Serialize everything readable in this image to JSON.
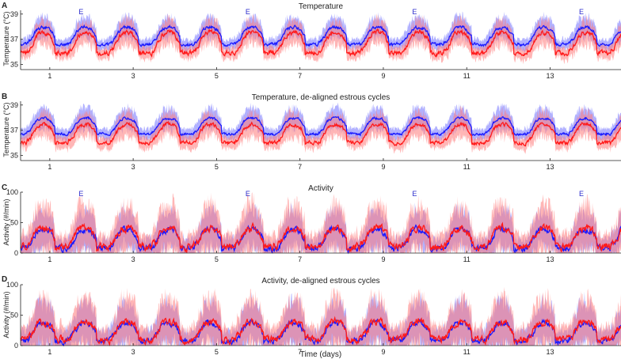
{
  "figure": {
    "xlabel": "Time (days)"
  },
  "colors": {
    "blue_line": "#1a1aff",
    "blue_band": "#7d7dff",
    "red_line": "#ff1a1a",
    "red_band": "#ff7a7a",
    "estrus_label": "#2a2acc",
    "axis": "#222222"
  },
  "chart_data": [
    {
      "panel": "A",
      "type": "line",
      "title": "Temperature",
      "ylabel": "Temperature (°C)",
      "xlabel": "",
      "xlim": [
        0.3,
        14.7
      ],
      "ylim": [
        34.6,
        39.3
      ],
      "yticks": [
        35,
        37,
        39
      ],
      "xticks": [
        1,
        3,
        5,
        7,
        9,
        11,
        13
      ],
      "estrus_marker": "E",
      "estrus_days": [
        1.75,
        5.75,
        9.75,
        13.75
      ],
      "series": [
        {
          "name": "blue",
          "period_days": 1,
          "night_start": 0.6,
          "night_end": 1.1,
          "night_mean": 38.0,
          "day_mean": 36.6,
          "spread": 0.7,
          "noise": 0.25
        },
        {
          "name": "red",
          "period_days": 1,
          "night_start": 0.6,
          "night_end": 1.1,
          "night_mean": 37.6,
          "day_mean": 35.9,
          "spread": 0.8,
          "noise": 0.35
        }
      ]
    },
    {
      "panel": "B",
      "type": "line",
      "title": "Temperature, de-aligned estrous cycles",
      "ylabel": "Temperature (°C)",
      "xlabel": "",
      "xlim": [
        0.3,
        14.7
      ],
      "ylim": [
        34.6,
        39.3
      ],
      "yticks": [
        35,
        37,
        39
      ],
      "xticks": [
        1,
        3,
        5,
        7,
        9,
        11,
        13
      ],
      "estrus_marker": "",
      "estrus_days": [],
      "series": [
        {
          "name": "blue",
          "period_days": 1,
          "night_start": 0.6,
          "night_end": 1.1,
          "night_mean": 38.0,
          "day_mean": 36.7,
          "spread": 0.7,
          "noise": 0.2
        },
        {
          "name": "red",
          "period_days": 1,
          "night_start": 0.6,
          "night_end": 1.1,
          "night_mean": 37.5,
          "day_mean": 36.0,
          "spread": 0.8,
          "noise": 0.3
        }
      ]
    },
    {
      "panel": "C",
      "type": "line",
      "title": "Activity",
      "ylabel": "Activity (#/min)",
      "xlabel": "",
      "xlim": [
        0.3,
        14.7
      ],
      "ylim": [
        0,
        100
      ],
      "yticks": [
        0,
        50,
        100
      ],
      "xticks": [
        1,
        3,
        5,
        7,
        9,
        11,
        13
      ],
      "estrus_marker": "E",
      "estrus_days": [
        1.75,
        5.75,
        9.75,
        13.75
      ],
      "series": [
        {
          "name": "blue",
          "period_days": 1,
          "night_start": 0.6,
          "night_end": 1.1,
          "night_mean": 40,
          "day_mean": 8,
          "spread": 25,
          "noise": 10
        },
        {
          "name": "red",
          "period_days": 1,
          "night_start": 0.6,
          "night_end": 1.1,
          "night_mean": 42,
          "day_mean": 10,
          "spread": 33,
          "noise": 12
        }
      ]
    },
    {
      "panel": "D",
      "type": "line",
      "title": "Activity, de-aligned estrous cycles",
      "ylabel": "Activity (#/min)",
      "xlabel": "Time (days)",
      "xlim": [
        0.3,
        14.7
      ],
      "ylim": [
        0,
        100
      ],
      "yticks": [
        0,
        50,
        100
      ],
      "xticks": [
        1,
        3,
        5,
        7,
        9,
        11,
        13
      ],
      "estrus_marker": "",
      "estrus_days": [],
      "series": [
        {
          "name": "blue",
          "period_days": 1,
          "night_start": 0.6,
          "night_end": 1.1,
          "night_mean": 38,
          "day_mean": 8,
          "spread": 28,
          "noise": 9
        },
        {
          "name": "red",
          "period_days": 1,
          "night_start": 0.6,
          "night_end": 1.1,
          "night_mean": 40,
          "day_mean": 10,
          "spread": 33,
          "noise": 11
        }
      ]
    }
  ]
}
